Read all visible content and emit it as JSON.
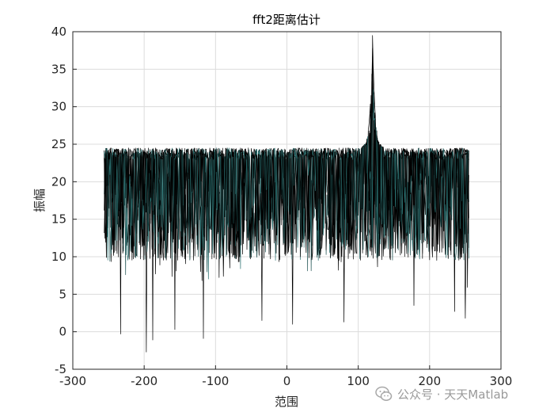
{
  "chart_data": {
    "type": "line",
    "title": "fft2距离估计",
    "xlabel": "范围",
    "ylabel": "振幅",
    "xlim": [
      -300,
      300
    ],
    "ylim": [
      -5,
      40
    ],
    "xticks": [
      -300,
      -200,
      -100,
      0,
      100,
      200,
      300
    ],
    "yticks": [
      -5,
      0,
      5,
      10,
      15,
      20,
      25,
      30,
      35,
      40
    ],
    "grid": true,
    "x_range": [
      -256,
      255
    ],
    "noise_floor": {
      "upper": 24.5,
      "lower_typical": 9.5
    },
    "peak": {
      "x": 120,
      "y": 39.5
    },
    "deep_minima": [
      {
        "x": -233,
        "y": -0.3
      },
      {
        "x": -197,
        "y": -2.7
      },
      {
        "x": -188,
        "y": -1.1
      },
      {
        "x": -157,
        "y": 0.3
      },
      {
        "x": -117,
        "y": -0.9
      },
      {
        "x": -35,
        "y": 1.5
      },
      {
        "x": 8,
        "y": 1.0
      },
      {
        "x": 80,
        "y": 1.3
      },
      {
        "x": 178,
        "y": 3.5
      },
      {
        "x": 235,
        "y": 2.7
      },
      {
        "x": 250,
        "y": 1.8
      }
    ],
    "series_colors": [
      "#000000",
      "#1b4f4f",
      "#2a6f6f"
    ]
  },
  "watermark": {
    "text": "公众号 · 天天Matlab",
    "icon": "wechat-icon"
  }
}
